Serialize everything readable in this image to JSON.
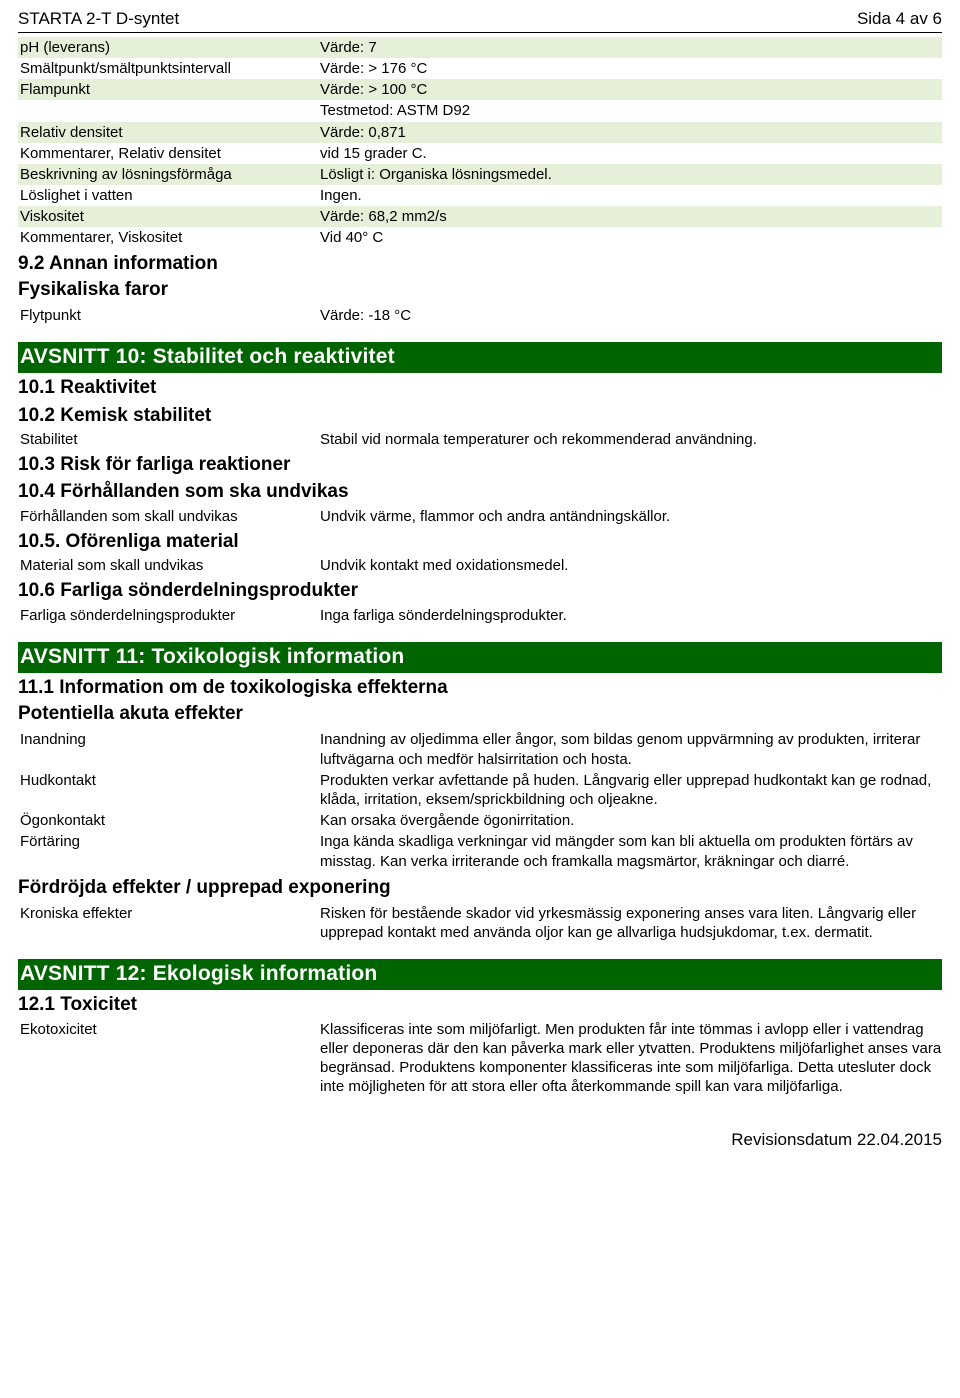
{
  "header": {
    "title": "STARTA 2-T D-syntet",
    "page": "Sida 4 av 6"
  },
  "properties": [
    {
      "label": "pH (leverans)",
      "value": "Värde: 7",
      "green": true
    },
    {
      "label": "Smältpunkt/smältpunktsintervall",
      "value": "Värde: > 176 °C",
      "green": false
    },
    {
      "label": "Flampunkt",
      "value": "Värde: > 100 °C",
      "green": true
    },
    {
      "label": "",
      "value": "Testmetod: ASTM D92",
      "green": false
    },
    {
      "label": "Relativ densitet",
      "value": "Värde: 0,871",
      "green": true
    },
    {
      "label": "Kommentarer, Relativ densitet",
      "value": "vid 15 grader C.",
      "green": false
    },
    {
      "label": "Beskrivning av lösningsförmåga",
      "value": "Lösligt i: Organiska lösningsmedel.",
      "green": true
    },
    {
      "label": "Löslighet i vatten",
      "value": "Ingen.",
      "green": false
    },
    {
      "label": "Viskositet",
      "value": "Värde: 68,2 mm2/s",
      "green": true
    },
    {
      "label": "Kommentarer, Viskositet",
      "value": "Vid 40° C",
      "green": false
    }
  ],
  "sub92": "9.2 Annan information",
  "sub92b": "Fysikaliska faror",
  "flytpunkt": {
    "label": "Flytpunkt",
    "value": "Värde: -18 °C"
  },
  "section10": {
    "title": "AVSNITT 10: Stabilitet och reaktivitet",
    "s101": "10.1 Reaktivitet",
    "s102": "10.2 Kemisk stabilitet",
    "stabilitet": {
      "label": "Stabilitet",
      "value": "Stabil vid normala temperaturer och rekommenderad användning."
    },
    "s103": "10.3 Risk för farliga reaktioner",
    "s104": "10.4 Förhållanden som ska undvikas",
    "forhall": {
      "label": "Förhållanden som skall undvikas",
      "value": "Undvik värme, flammor och andra antändningskällor."
    },
    "s105": "10.5. Oförenliga material",
    "material": {
      "label": "Material som skall undvikas",
      "value": "Undvik kontakt med oxidationsmedel."
    },
    "s106": "10.6 Farliga sönderdelningsprodukter",
    "farliga": {
      "label": "Farliga sönderdelningsprodukter",
      "value": "Inga farliga sönderdelningsprodukter."
    }
  },
  "section11": {
    "title": "AVSNITT 11: Toxikologisk information",
    "s111": "11.1 Information om de toxikologiska effekterna",
    "potakuta": "Potentiella akuta effekter",
    "inandning": {
      "label": "Inandning",
      "value": "Inandning av oljedimma eller ångor, som bildas genom uppvärmning av produkten, irriterar luftvägarna och medför halsirritation och hosta."
    },
    "hudkontakt": {
      "label": "Hudkontakt",
      "value": "Produkten verkar avfettande på huden. Långvarig eller upprepad hudkontakt kan ge rodnad, klåda, irritation, eksem/sprickbildning och oljeakne."
    },
    "ogon": {
      "label": "Ögonkontakt",
      "value": "Kan orsaka övergående ögonirritation."
    },
    "fort": {
      "label": "Förtäring",
      "value": "Inga kända skadliga verkningar vid mängder som kan bli aktuella om produkten förtärs av misstag. Kan verka irriterande och framkalla magsmärtor, kräkningar och diarré."
    },
    "fordroj": "Fördröjda effekter / upprepad exponering",
    "kroniska": {
      "label": "Kroniska effekter",
      "value": "Risken för bestående skador vid yrkesmässig exponering anses vara liten. Långvarig eller upprepad kontakt med använda oljor kan ge allvarliga hudsjukdomar, t.ex. dermatit."
    }
  },
  "section12": {
    "title": "AVSNITT 12: Ekologisk information",
    "s121": "12.1 Toxicitet",
    "eko": {
      "label": "Ekotoxicitet",
      "value": "Klassificeras inte som miljöfarligt. Men produkten får inte tömmas i avlopp eller i vattendrag eller deponeras där den kan påverka mark eller ytvatten. Produktens miljöfarlighet anses vara begränsad. Produktens komponenter klassificeras inte som miljöfarliga. Detta utesluter dock inte möjligheten för att stora eller ofta återkommande spill kan vara miljöfarliga."
    }
  },
  "footer": {
    "revision": "Revisionsdatum 22.04.2015"
  }
}
